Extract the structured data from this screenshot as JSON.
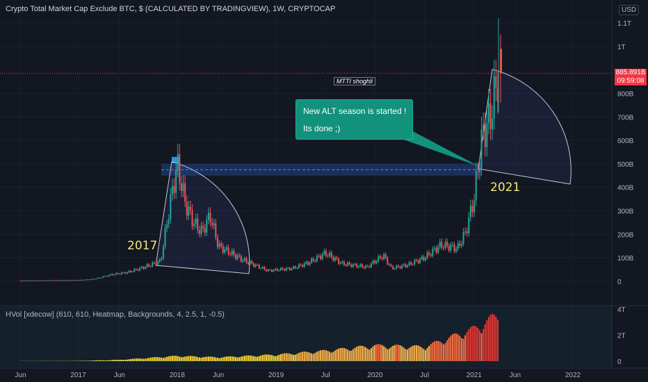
{
  "header": {
    "title": "Crypto Total Market Cap Exclude BTC, $ (CALCULATED BY TRADINGVIEW), 1W, CRYPTOCAP",
    "currency_label": "USD"
  },
  "watermark": "MTTI shoghli",
  "annotations": {
    "callout_line1": "New ALT season is started !",
    "callout_line2": "Its done ;)",
    "label_2017": "2017",
    "label_2021": "2021"
  },
  "price_badge": {
    "last_value": "885.891B",
    "countdown": "09:59:08"
  },
  "colors": {
    "background": "#131722",
    "up": "#26a69a",
    "down": "#ef5350",
    "callout": "#12917c",
    "band": "#1e3a6e",
    "year_label": "#f5e77a"
  },
  "indicator": {
    "title": "HVol [xdecow] (610, 610, Heatmap, Backgrounds, 4, 2.5, 1, -0.5)"
  },
  "chart_data": [
    {
      "type": "candlestick",
      "title": "Crypto Total Market Cap Exclude BTC, $ (CALCULATED BY TRADINGVIEW), 1W, CRYPTOCAP",
      "x": [
        "2016-06",
        "2016-09",
        "2017-01",
        "2017-03",
        "2017-05",
        "2017-07",
        "2017-09",
        "2017-11",
        "2017-12",
        "2018-01",
        "2018-02",
        "2018-03",
        "2018-04",
        "2018-05",
        "2018-06",
        "2018-07",
        "2018-09",
        "2018-12",
        "2019-03",
        "2019-05",
        "2019-07",
        "2019-09",
        "2019-12",
        "2020-02",
        "2020-03",
        "2020-05",
        "2020-07",
        "2020-09",
        "2020-11",
        "2020-12",
        "2021-01",
        "2021-02",
        "2021-03",
        "2021-04"
      ],
      "values": [
        3,
        4,
        5,
        10,
        28,
        38,
        60,
        85,
        300,
        500,
        330,
        250,
        210,
        280,
        150,
        130,
        90,
        45,
        55,
        80,
        120,
        75,
        60,
        110,
        55,
        70,
        100,
        155,
        140,
        210,
        350,
        620,
        700,
        885.891
      ],
      "ylabel": "",
      "ylim": [
        0,
        1150
      ],
      "y_unit": "B",
      "y_ticks": [
        "1.1T",
        "1T",
        "800B",
        "700B",
        "600B",
        "500B",
        "400B",
        "300B",
        "200B",
        "100B",
        "0"
      ],
      "x_ticks": [
        "Jun",
        "2017",
        "Jun",
        "2018",
        "Jun",
        "2019",
        "Jul",
        "2020",
        "Jul",
        "2021",
        "Jun",
        "2022"
      ],
      "current_value": "885.891B",
      "current_value_countdown": "09:59:08",
      "highlight_band": [
        450,
        500
      ],
      "annotations": [
        "New ALT season is started !",
        "Its done ;)",
        "2017",
        "2021",
        "MTTI shoghli"
      ],
      "grid": true
    },
    {
      "type": "bar",
      "title": "HVol [xdecow] (610, 610, Heatmap, Backgrounds, 4, 2.5, 1, -0.5)",
      "y_ticks": [
        "4T",
        "2T",
        "0"
      ],
      "ylim": [
        0,
        4
      ],
      "y_unit": "T",
      "x": [
        "2016-06",
        "2017-01",
        "2017-06",
        "2018-01",
        "2018-06",
        "2019-01",
        "2019-07",
        "2020-01",
        "2020-07",
        "2021-01",
        "2021-04"
      ],
      "values": [
        0.01,
        0.02,
        0.1,
        0.4,
        0.3,
        0.5,
        0.8,
        1.2,
        1.1,
        2.5,
        3.6
      ]
    }
  ]
}
